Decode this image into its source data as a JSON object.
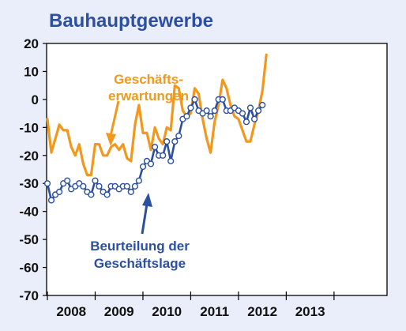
{
  "chart_data": {
    "type": "line",
    "title": "Bauhauptgewerbe",
    "xlabel": "",
    "ylabel": "",
    "ylim": [
      -70,
      20
    ],
    "y_ticks": [
      "20",
      "10",
      "0",
      "-10",
      "-20",
      "-30",
      "-40",
      "-50",
      "-60",
      "-70"
    ],
    "x_ticks": [
      "2008",
      "2009",
      "2010",
      "2011",
      "2012",
      "2013"
    ],
    "x_unit": "months since Jan 2008 (year labels centered on each year)",
    "grid": false,
    "annotations": {
      "orange": [
        "Geschäfts-",
        "erwartungen"
      ],
      "blue": [
        "Beurteilung der",
        "Geschäftslage"
      ]
    },
    "series": [
      {
        "name": "Geschäftserwartungen",
        "color": "#f2981c",
        "values": [
          -7,
          -19,
          -14,
          -9,
          -11,
          -11,
          -17,
          -20,
          -16,
          -23,
          -27,
          -27,
          -16,
          -16,
          -20,
          -20,
          -17,
          -16,
          -18,
          -16,
          -21,
          -22,
          -9,
          -2,
          -12,
          -12,
          -18,
          -10,
          -14,
          -16,
          -10,
          -11,
          5,
          4,
          -4,
          -6,
          -5,
          4,
          2,
          -7,
          -14,
          -19,
          -8,
          -2,
          7,
          4,
          -2,
          -6,
          -7,
          -11,
          -15,
          -15,
          -9,
          -4,
          3,
          16
        ]
      },
      {
        "name": "Beurteilung der Geschäftslage",
        "color": "#2c4fa0",
        "markers": true,
        "values": [
          -30,
          -36,
          -34,
          -33,
          -30,
          -29,
          -32,
          -31,
          -30,
          -31,
          -33,
          -34,
          -29,
          -31,
          -33,
          -34,
          -31,
          -31,
          -32,
          -31,
          -31,
          -33,
          -31,
          -29,
          -24,
          -22,
          -23,
          -17,
          -20,
          -20,
          -15,
          -22,
          -15,
          -13,
          -7,
          -6,
          -3,
          0,
          -4,
          -5,
          -4,
          -6,
          -4,
          0,
          0,
          -4,
          -4,
          -3,
          -4,
          -5,
          -8,
          -3,
          -7,
          -4,
          -2
        ]
      }
    ]
  }
}
